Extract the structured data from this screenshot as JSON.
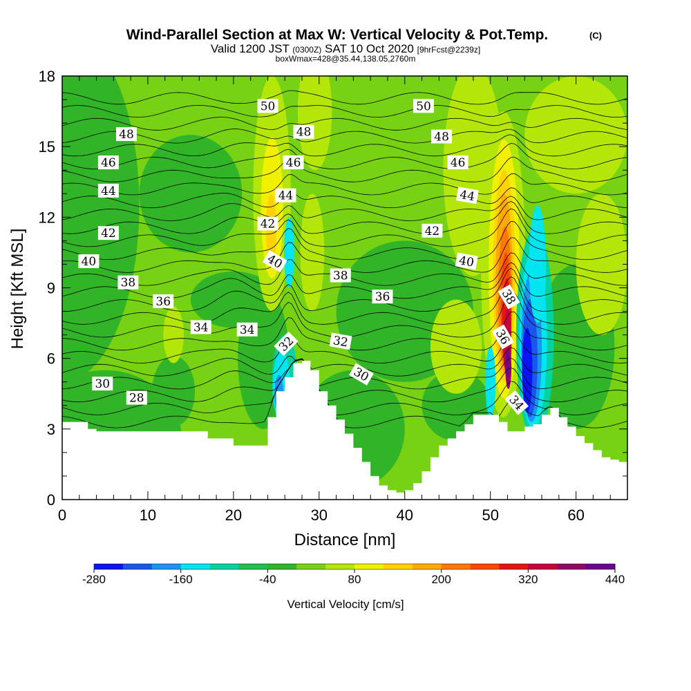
{
  "chart_data": {
    "type": "heatmap",
    "title": "Wind-Parallel Section at Max W: Vertical Velocity & Pot.Temp.",
    "copyright_mark": "(C)",
    "subtitle_valid": "Valid 1200 JST",
    "subtitle_utc": "(0300Z)",
    "subtitle_date": "SAT 10 Oct 2020",
    "subtitle_fcst": "[9hrFcst@2239z]",
    "subtitle_box": "boxWmax=428@35.44,138.05,2760m",
    "xlabel": "Distance [nm]",
    "ylabel": "Height [Kft MSL]",
    "xlim": [
      0,
      66
    ],
    "ylim": [
      0,
      18
    ],
    "x_ticks": [
      0,
      10,
      20,
      30,
      40,
      50,
      60
    ],
    "y_ticks": [
      0,
      3,
      6,
      9,
      12,
      15,
      18
    ],
    "colorbar": {
      "label": "Vertical Velocity [cm/s]",
      "tick_labels": [
        "-280",
        "-160",
        "-40",
        "80",
        "200",
        "320",
        "440"
      ],
      "colors": [
        "#0a14f0",
        "#1a55f0",
        "#1a96f2",
        "#00e6f0",
        "#00d2a0",
        "#1ec050",
        "#32b428",
        "#78d214",
        "#b4e60a",
        "#f0f000",
        "#ffd200",
        "#ffaa00",
        "#ff7800",
        "#ff4600",
        "#e61414",
        "#c8003c",
        "#960064",
        "#6e008c"
      ]
    },
    "terrain_profile": {
      "x": [
        0,
        2,
        3,
        4,
        16,
        17,
        19,
        20,
        23,
        24,
        25,
        26,
        27,
        28,
        29,
        30,
        31,
        32,
        33,
        34,
        35,
        36,
        37,
        38,
        39,
        40,
        41,
        42,
        43,
        44,
        45,
        46,
        47,
        48,
        49,
        50,
        51,
        52,
        53,
        54,
        55,
        56,
        57,
        58,
        59,
        60,
        61,
        62,
        63,
        64,
        65,
        66
      ],
      "y": [
        3.3,
        3.3,
        3.0,
        2.9,
        2.9,
        2.6,
        2.6,
        2.3,
        2.3,
        3.5,
        4.6,
        5.2,
        5.8,
        5.9,
        5.5,
        4.6,
        4.0,
        3.4,
        2.8,
        2.2,
        1.6,
        1.0,
        0.6,
        0.4,
        0.3,
        0.4,
        0.7,
        1.2,
        1.8,
        2.3,
        2.6,
        2.9,
        3.2,
        3.6,
        3.6,
        3.6,
        3.3,
        2.9,
        2.9,
        3.1,
        3.2,
        3.6,
        3.9,
        3.5,
        3.1,
        2.7,
        2.4,
        2.1,
        1.8,
        1.7,
        1.6,
        1.6
      ]
    },
    "theta_contours": {
      "levels": [
        27,
        28,
        29,
        30,
        31,
        32,
        33,
        34,
        35,
        36,
        37,
        38,
        39,
        40,
        41,
        42,
        43,
        44,
        45,
        46,
        47,
        48,
        49,
        50,
        51,
        52
      ]
    },
    "contour_labels": [
      {
        "text": "50",
        "x": 24.0,
        "y": 16.7,
        "angle": 0
      },
      {
        "text": "48",
        "x": 7.5,
        "y": 15.5,
        "angle": 0
      },
      {
        "text": "48",
        "x": 28.2,
        "y": 15.6,
        "angle": 0
      },
      {
        "text": "46",
        "x": 5.4,
        "y": 14.3,
        "angle": 0
      },
      {
        "text": "46",
        "x": 27.0,
        "y": 14.3,
        "angle": 0
      },
      {
        "text": "44",
        "x": 5.4,
        "y": 13.1,
        "angle": 0
      },
      {
        "text": "44",
        "x": 26.1,
        "y": 12.9,
        "angle": 0
      },
      {
        "text": "42",
        "x": 5.4,
        "y": 11.3,
        "angle": 0
      },
      {
        "text": "42",
        "x": 24.0,
        "y": 11.7,
        "angle": 0
      },
      {
        "text": "40",
        "x": 3.1,
        "y": 10.1,
        "angle": 0
      },
      {
        "text": "40",
        "x": 24.8,
        "y": 10.1,
        "angle": 30
      },
      {
        "text": "38",
        "x": 7.7,
        "y": 9.2,
        "angle": 0
      },
      {
        "text": "38",
        "x": 32.5,
        "y": 9.5,
        "angle": 0
      },
      {
        "text": "36",
        "x": 11.8,
        "y": 8.4,
        "angle": 0
      },
      {
        "text": "36",
        "x": 37.4,
        "y": 8.6,
        "angle": 0
      },
      {
        "text": "34",
        "x": 16.2,
        "y": 7.3,
        "angle": 0
      },
      {
        "text": "34",
        "x": 21.6,
        "y": 7.2,
        "angle": 0
      },
      {
        "text": "32",
        "x": 26.2,
        "y": 6.6,
        "angle": -45
      },
      {
        "text": "32",
        "x": 32.5,
        "y": 6.7,
        "angle": 10
      },
      {
        "text": "30",
        "x": 4.7,
        "y": 4.9,
        "angle": 0
      },
      {
        "text": "30",
        "x": 34.9,
        "y": 5.3,
        "angle": 30
      },
      {
        "text": "28",
        "x": 8.7,
        "y": 4.3,
        "angle": 0
      },
      {
        "text": "50",
        "x": 42.2,
        "y": 16.7,
        "angle": 0
      },
      {
        "text": "48",
        "x": 44.3,
        "y": 15.4,
        "angle": 0
      },
      {
        "text": "46",
        "x": 46.2,
        "y": 14.3,
        "angle": 0
      },
      {
        "text": "44",
        "x": 47.3,
        "y": 12.9,
        "angle": 10
      },
      {
        "text": "42",
        "x": 43.2,
        "y": 11.4,
        "angle": 0
      },
      {
        "text": "40",
        "x": 47.2,
        "y": 10.1,
        "angle": 10
      },
      {
        "text": "38",
        "x": 52.1,
        "y": 8.6,
        "angle": 60
      },
      {
        "text": "36",
        "x": 51.4,
        "y": 6.9,
        "angle": 60
      },
      {
        "text": "34",
        "x": 53.0,
        "y": 4.1,
        "angle": 50
      }
    ]
  }
}
